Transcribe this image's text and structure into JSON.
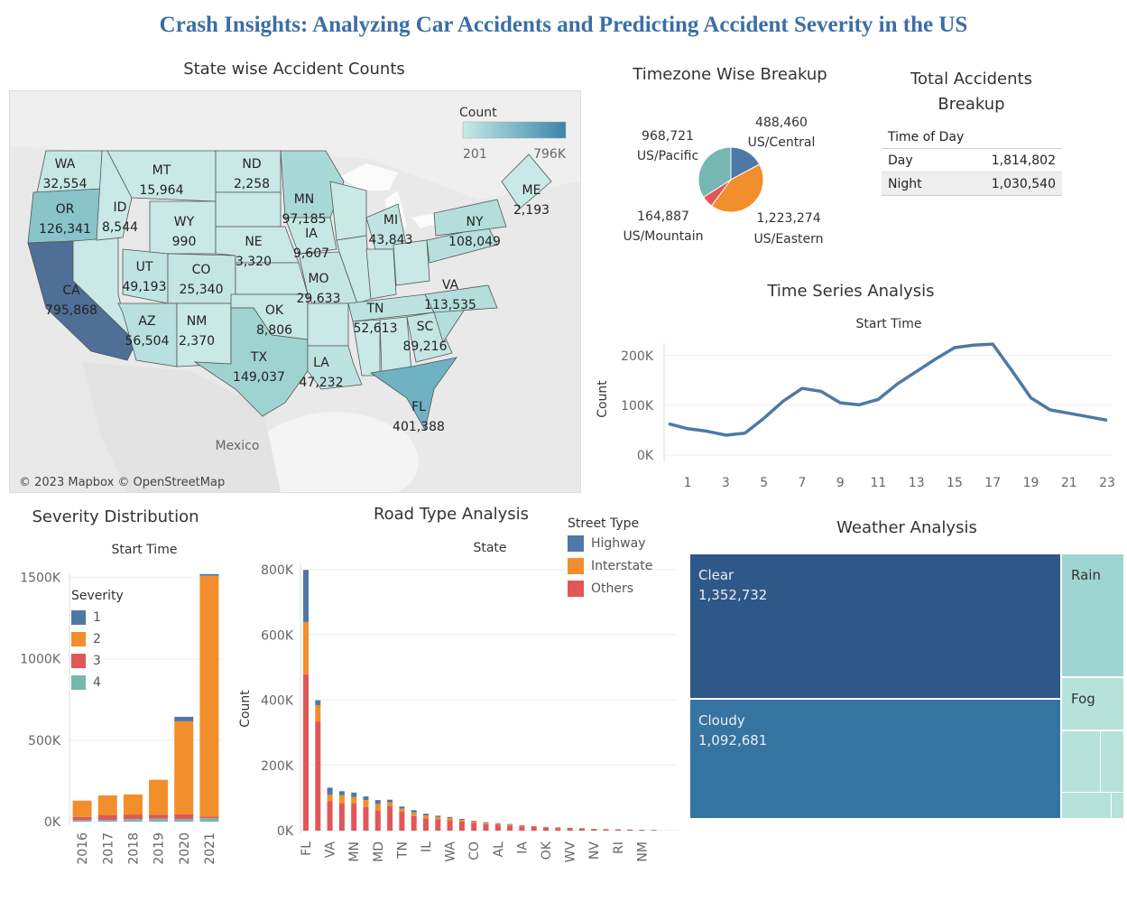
{
  "dashboard_title": "Crash Insights: Analyzing Car Accidents and Predicting Accident Severity in the US",
  "colors": {
    "highway": "#4e79a7",
    "interstate": "#f28e2b",
    "others": "#e15759",
    "sev4": "#76b7b2",
    "title": "#3b6ea5",
    "map_low": "#c8e9e6",
    "map_high": "#4f6f97",
    "weather_dark": "#2e5887",
    "weather_mid": "#3574a0",
    "weather_light": "#9ed4d1",
    "weather_pale": "#b6e2da"
  },
  "map": {
    "title": "State wise Accident Counts",
    "legend_title": "Count",
    "legend_min": "201",
    "legend_max": "796K",
    "credit": "© 2023 Mapbox © OpenStreetMap",
    "country_label": "Mexico",
    "states": [
      {
        "abbr": "WA",
        "count": "32,554"
      },
      {
        "abbr": "OR",
        "count": "126,341"
      },
      {
        "abbr": "CA",
        "count": "795,868"
      },
      {
        "abbr": "MT",
        "count": "15,964"
      },
      {
        "abbr": "ID",
        "count": "8,544"
      },
      {
        "abbr": "WY",
        "count": "990"
      },
      {
        "abbr": "ND",
        "count": "2,258"
      },
      {
        "abbr": "MN",
        "count": "97,185"
      },
      {
        "abbr": "NE",
        "count": "3,320"
      },
      {
        "abbr": "IA",
        "count": "9,607"
      },
      {
        "abbr": "UT",
        "count": "49,193"
      },
      {
        "abbr": "CO",
        "count": "25,340"
      },
      {
        "abbr": "AZ",
        "count": "56,504"
      },
      {
        "abbr": "NM",
        "count": "2,370"
      },
      {
        "abbr": "OK",
        "count": "8,806"
      },
      {
        "abbr": "TX",
        "count": "149,037"
      },
      {
        "abbr": "MO",
        "count": "29,633"
      },
      {
        "abbr": "LA",
        "count": "47,232"
      },
      {
        "abbr": "MI",
        "count": "43,843"
      },
      {
        "abbr": "TN",
        "count": "52,613"
      },
      {
        "abbr": "NY",
        "count": "108,049"
      },
      {
        "abbr": "ME",
        "count": "2,193"
      },
      {
        "abbr": "VA",
        "count": "113,535"
      },
      {
        "abbr": "SC",
        "count": "89,216"
      },
      {
        "abbr": "FL",
        "count": "401,388"
      }
    ]
  },
  "timezone": {
    "title": "Timezone Wise Breakup",
    "slices": [
      {
        "name": "US/Central",
        "value": 488460,
        "label": "488,460",
        "color": "#4e79a7"
      },
      {
        "name": "US/Eastern",
        "value": 1223274,
        "label": "1,223,274",
        "color": "#f28e2b"
      },
      {
        "name": "US/Mountain",
        "value": 164887,
        "label": "164,887",
        "color": "#e15759"
      },
      {
        "name": "US/Pacific",
        "value": 968721,
        "label": "968,721",
        "color": "#76b7b2"
      }
    ]
  },
  "breakup": {
    "title_line1": "Total Accidents",
    "title_line2": "Breakup",
    "header": "Time of Day",
    "rows": [
      {
        "label": "Day",
        "value": "1,814,802"
      },
      {
        "label": "Night",
        "value": "1,030,540"
      }
    ]
  },
  "chart_data": [
    {
      "id": "time_series",
      "type": "line",
      "title": "Time Series Analysis",
      "subtitle": "Start Time",
      "ylabel": "Count",
      "x": [
        0,
        1,
        2,
        3,
        4,
        5,
        6,
        7,
        8,
        9,
        10,
        11,
        12,
        13,
        14,
        15,
        16,
        17,
        18,
        19,
        20,
        21,
        22,
        23
      ],
      "x_tick_labels": [
        "1",
        "3",
        "5",
        "7",
        "9",
        "11",
        "13",
        "15",
        "17",
        "19",
        "21",
        "23"
      ],
      "values": [
        63000,
        53000,
        48000,
        40000,
        44000,
        74000,
        108000,
        134000,
        128000,
        105000,
        101000,
        112000,
        143000,
        168000,
        193000,
        216000,
        221000,
        223000,
        170000,
        115000,
        91000,
        84000,
        77000,
        70000
      ],
      "ylim": [
        0,
        225000
      ],
      "y_ticks": [
        "0K",
        "100K",
        "200K"
      ]
    },
    {
      "id": "severity",
      "type": "bar",
      "stacked": true,
      "title": "Severity Distribution",
      "subtitle": "Start Time",
      "legend_title": "Severity",
      "categories": [
        "2016",
        "2017",
        "2018",
        "2019",
        "2020",
        "2021"
      ],
      "series": [
        {
          "name": "1",
          "color": "#4e79a7",
          "values": [
            0,
            0,
            0,
            0,
            28000,
            10000
          ]
        },
        {
          "name": "2",
          "color": "#f28e2b",
          "values": [
            100000,
            120000,
            123000,
            215000,
            570000,
            1480000
          ]
        },
        {
          "name": "3",
          "color": "#e15759",
          "values": [
            20000,
            30000,
            28000,
            24000,
            30000,
            10000
          ]
        },
        {
          "name": "4",
          "color": "#76b7b2",
          "values": [
            9000,
            11000,
            16000,
            18000,
            16000,
            21000
          ]
        }
      ],
      "ylim": [
        0,
        1520000
      ],
      "y_ticks": [
        "0K",
        "500K",
        "1000K",
        "1500K"
      ]
    },
    {
      "id": "road_type",
      "type": "bar",
      "stacked": true,
      "title": "Road Type Analysis",
      "subtitle": "State",
      "ylabel": "Count",
      "legend_title": "Street Type",
      "categories": [
        "FL",
        "",
        "VA",
        "",
        "MN",
        "",
        "MD",
        "",
        "TN",
        "",
        "IL",
        "",
        "WA",
        "",
        "CO",
        "",
        "AL",
        "",
        "IA",
        "",
        "OK",
        "",
        "WV",
        "",
        "NV",
        "",
        "RI",
        "",
        "NM",
        ""
      ],
      "series": [
        {
          "name": "Highway",
          "color": "#4e79a7",
          "values": [
            160000,
            15000,
            22000,
            12000,
            14000,
            11000,
            12000,
            8000,
            6000,
            7000,
            5000,
            4000,
            3000,
            3000,
            2000,
            2000,
            1500,
            1500,
            1200,
            1000,
            800,
            700,
            600,
            500,
            400,
            400,
            300,
            300,
            200,
            200
          ]
        },
        {
          "name": "Interstate",
          "color": "#f28e2b",
          "values": [
            160000,
            50000,
            20000,
            26000,
            20000,
            22000,
            20000,
            12000,
            10000,
            11000,
            9000,
            7000,
            7000,
            5000,
            4500,
            4000,
            3500,
            3000,
            2500,
            2000,
            1800,
            1500,
            1200,
            900,
            800,
            700,
            600,
            500,
            400,
            300
          ]
        },
        {
          "name": "Others",
          "color": "#e15759",
          "values": [
            480000,
            335000,
            90000,
            83000,
            83000,
            72000,
            62000,
            75000,
            58000,
            45000,
            38000,
            35000,
            32000,
            28000,
            24000,
            20000,
            18000,
            16000,
            13000,
            11000,
            9000,
            8000,
            7000,
            6000,
            4000,
            3500,
            3000,
            2500,
            2000,
            1500
          ]
        }
      ],
      "ylim": [
        0,
        820000
      ],
      "y_ticks": [
        "0K",
        "200K",
        "400K",
        "600K",
        "800K"
      ]
    }
  ],
  "weather": {
    "title": "Weather Analysis",
    "tiles": [
      {
        "name": "Clear",
        "value": "1,352,732"
      },
      {
        "name": "Cloudy",
        "value": "1,092,681"
      },
      {
        "name": "Rain",
        "value": ""
      },
      {
        "name": "Fog",
        "value": ""
      }
    ]
  }
}
